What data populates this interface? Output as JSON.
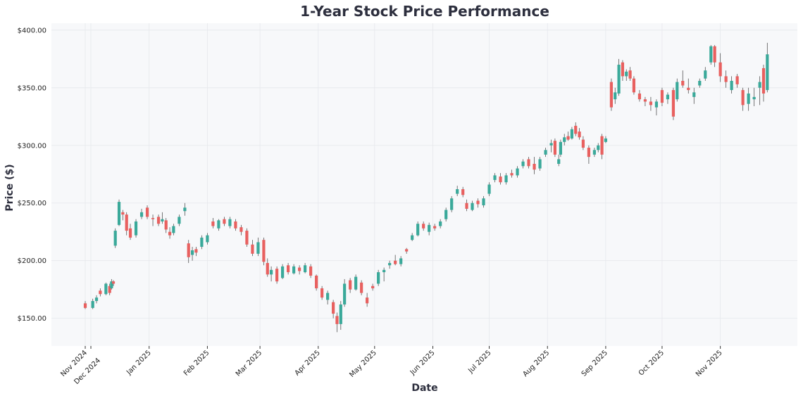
{
  "chart_data": {
    "type": "candlestick",
    "title": "1-Year Stock Price Performance",
    "xlabel": "Date",
    "ylabel": "Price ($)",
    "xlim": [
      "2024-11-10",
      "2025-12-12"
    ],
    "ylim": [
      126,
      406
    ],
    "grid": true,
    "colors": {
      "up": "#3aa99a",
      "down": "#e8605f",
      "wick": "#555555",
      "background": "#f7f8fa",
      "grid": "#e6e8ec"
    },
    "y_ticks": [
      {
        "value": 150,
        "label": "$150.00"
      },
      {
        "value": 200,
        "label": "$200.00"
      },
      {
        "value": 250,
        "label": "$250.00"
      },
      {
        "value": 300,
        "label": "$300.00"
      },
      {
        "value": 350,
        "label": "$350.00"
      },
      {
        "value": 400,
        "label": "$400.00"
      }
    ],
    "x_ticks": [
      {
        "date": "2024-11-28",
        "label": "Nov 2024"
      },
      {
        "date": "2024-12-01",
        "label": "Dec 2024"
      },
      {
        "date": "2025-01-01",
        "label": "Jan 2025"
      },
      {
        "date": "2025-02-01",
        "label": "Feb 2025"
      },
      {
        "date": "2025-03-01",
        "label": "Mar 2025"
      },
      {
        "date": "2025-04-01",
        "label": "Apr 2025"
      },
      {
        "date": "2025-05-01",
        "label": "May 2025"
      },
      {
        "date": "2025-06-01",
        "label": "Jun 2025"
      },
      {
        "date": "2025-07-01",
        "label": "Jul 2025"
      },
      {
        "date": "2025-08-01",
        "label": "Aug 2025"
      },
      {
        "date": "2025-09-01",
        "label": "Sep 2025"
      },
      {
        "date": "2025-10-01",
        "label": "Oct 2025"
      },
      {
        "date": "2025-11-01",
        "label": "Nov 2025"
      }
    ],
    "columns": [
      "date",
      "open",
      "high",
      "low",
      "close"
    ],
    "candles": [
      [
        "2024-11-28",
        163,
        165,
        158,
        159
      ],
      [
        "2024-12-02",
        159,
        167,
        158,
        165
      ],
      [
        "2024-12-04",
        165,
        170,
        163,
        168
      ],
      [
        "2024-12-06",
        174,
        176,
        169,
        171
      ],
      [
        "2024-12-09",
        171,
        181,
        170,
        180
      ],
      [
        "2024-12-11",
        178,
        180,
        170,
        172
      ],
      [
        "2024-12-12",
        176,
        184,
        175,
        182
      ],
      [
        "2024-12-13",
        182,
        183,
        178,
        180
      ],
      [
        "2024-12-14",
        213,
        228,
        211,
        226
      ],
      [
        "2024-12-16",
        231,
        253,
        230,
        251
      ],
      [
        "2024-12-18",
        242,
        244,
        235,
        240
      ],
      [
        "2024-12-20",
        240,
        242,
        222,
        226
      ],
      [
        "2024-12-22",
        228,
        232,
        218,
        220
      ],
      [
        "2024-12-25",
        222,
        236,
        220,
        234
      ],
      [
        "2024-12-28",
        238,
        245,
        236,
        242
      ],
      [
        "2024-12-31",
        246,
        248,
        236,
        238
      ],
      [
        "2025-01-03",
        237,
        240,
        230,
        236
      ],
      [
        "2025-01-06",
        238,
        240,
        230,
        232
      ],
      [
        "2025-01-08",
        234,
        242,
        232,
        236
      ],
      [
        "2025-01-10",
        235,
        237,
        224,
        227
      ],
      [
        "2025-01-12",
        225,
        229,
        219,
        222
      ],
      [
        "2025-01-14",
        224,
        232,
        222,
        230
      ],
      [
        "2025-01-17",
        232,
        240,
        230,
        238
      ],
      [
        "2025-01-20",
        243,
        250,
        239,
        246
      ],
      [
        "2025-01-22",
        215,
        218,
        198,
        203
      ],
      [
        "2025-01-24",
        205,
        212,
        200,
        209
      ],
      [
        "2025-01-26",
        210,
        212,
        204,
        207
      ],
      [
        "2025-01-29",
        212,
        222,
        210,
        220
      ],
      [
        "2025-02-01",
        216,
        224,
        214,
        222
      ],
      [
        "2025-02-04",
        234,
        237,
        228,
        230
      ],
      [
        "2025-02-07",
        228,
        236,
        226,
        235
      ],
      [
        "2025-02-10",
        236,
        238,
        230,
        232
      ],
      [
        "2025-02-13",
        230,
        238,
        228,
        236
      ],
      [
        "2025-02-16",
        234,
        236,
        226,
        228
      ],
      [
        "2025-02-19",
        229,
        231,
        222,
        225
      ],
      [
        "2025-02-22",
        226,
        228,
        212,
        214
      ],
      [
        "2025-02-25",
        214,
        218,
        204,
        206
      ],
      [
        "2025-02-28",
        206,
        220,
        204,
        216
      ],
      [
        "2025-03-03",
        218,
        220,
        196,
        199
      ],
      [
        "2025-03-05",
        198,
        202,
        186,
        188
      ],
      [
        "2025-03-07",
        188,
        195,
        182,
        192
      ],
      [
        "2025-03-10",
        193,
        195,
        180,
        182
      ],
      [
        "2025-03-13",
        185,
        197,
        184,
        195
      ],
      [
        "2025-03-16",
        196,
        198,
        188,
        190
      ],
      [
        "2025-03-19",
        189,
        197,
        188,
        195
      ],
      [
        "2025-03-22",
        194,
        196,
        188,
        191
      ],
      [
        "2025-03-25",
        190,
        198,
        189,
        196
      ],
      [
        "2025-03-28",
        195,
        197,
        185,
        187
      ],
      [
        "2025-03-31",
        187,
        188,
        174,
        176
      ],
      [
        "2025-04-03",
        176,
        178,
        166,
        168
      ],
      [
        "2025-04-06",
        166,
        174,
        162,
        172
      ],
      [
        "2025-04-09",
        164,
        166,
        150,
        154
      ],
      [
        "2025-04-11",
        152,
        155,
        138,
        145
      ],
      [
        "2025-04-13",
        145,
        165,
        140,
        162
      ],
      [
        "2025-04-15",
        162,
        184,
        160,
        180
      ],
      [
        "2025-04-18",
        183,
        185,
        172,
        175
      ],
      [
        "2025-04-21",
        175,
        188,
        174,
        186
      ],
      [
        "2025-04-24",
        181,
        183,
        170,
        172
      ],
      [
        "2025-04-27",
        168,
        172,
        160,
        163
      ],
      [
        "2025-04-30",
        178,
        180,
        174,
        176
      ],
      [
        "2025-05-03",
        180,
        192,
        178,
        190
      ],
      [
        "2025-05-06",
        190,
        194,
        182,
        192
      ],
      [
        "2025-05-09",
        196,
        200,
        193,
        198
      ],
      [
        "2025-05-12",
        200,
        205,
        196,
        197
      ],
      [
        "2025-05-15",
        197,
        204,
        195,
        202
      ],
      [
        "2025-05-18",
        210,
        211,
        206,
        208
      ],
      [
        "2025-05-21",
        218,
        224,
        217,
        222
      ],
      [
        "2025-05-24",
        222,
        234,
        221,
        232
      ],
      [
        "2025-05-27",
        232,
        234,
        226,
        228
      ],
      [
        "2025-05-30",
        225,
        233,
        222,
        231
      ],
      [
        "2025-06-02",
        230,
        232,
        226,
        228
      ],
      [
        "2025-06-05",
        230,
        236,
        228,
        234
      ],
      [
        "2025-06-08",
        236,
        246,
        234,
        244
      ],
      [
        "2025-06-11",
        244,
        256,
        242,
        254
      ],
      [
        "2025-06-14",
        258,
        265,
        256,
        262
      ],
      [
        "2025-06-17",
        262,
        264,
        255,
        257
      ],
      [
        "2025-06-19",
        250,
        253,
        243,
        245
      ],
      [
        "2025-06-22",
        244,
        252,
        243,
        250
      ],
      [
        "2025-06-25",
        252,
        254,
        246,
        249
      ],
      [
        "2025-06-28",
        248,
        256,
        246,
        254
      ],
      [
        "2025-07-01",
        258,
        268,
        256,
        266
      ],
      [
        "2025-07-04",
        270,
        276,
        268,
        274
      ],
      [
        "2025-07-07",
        273,
        276,
        266,
        268
      ],
      [
        "2025-07-10",
        268,
        276,
        266,
        274
      ],
      [
        "2025-07-13",
        276,
        279,
        272,
        274
      ],
      [
        "2025-07-16",
        274,
        282,
        272,
        280
      ],
      [
        "2025-07-19",
        282,
        288,
        280,
        286
      ],
      [
        "2025-07-22",
        288,
        290,
        280,
        282
      ],
      [
        "2025-07-25",
        284,
        290,
        275,
        279
      ],
      [
        "2025-07-28",
        280,
        290,
        278,
        288
      ],
      [
        "2025-07-31",
        292,
        298,
        290,
        296
      ],
      [
        "2025-08-03",
        300,
        305,
        294,
        302
      ],
      [
        "2025-08-05",
        304,
        306,
        290,
        292
      ],
      [
        "2025-08-07",
        284,
        292,
        282,
        288
      ],
      [
        "2025-08-08",
        292,
        305,
        290,
        303
      ],
      [
        "2025-08-10",
        303,
        310,
        300,
        307
      ],
      [
        "2025-08-12",
        308,
        312,
        304,
        305
      ],
      [
        "2025-08-14",
        306,
        316,
        305,
        314
      ],
      [
        "2025-08-16",
        317,
        320,
        308,
        310
      ],
      [
        "2025-08-18",
        312,
        315,
        305,
        307
      ],
      [
        "2025-08-20",
        305,
        308,
        296,
        298
      ],
      [
        "2025-08-23",
        298,
        300,
        284,
        290
      ],
      [
        "2025-08-26",
        292,
        298,
        290,
        296
      ],
      [
        "2025-08-28",
        296,
        302,
        294,
        300
      ],
      [
        "2025-08-30",
        308,
        310,
        288,
        292
      ],
      [
        "2025-09-01",
        303,
        308,
        302,
        306
      ],
      [
        "2025-09-04",
        355,
        358,
        330,
        333
      ],
      [
        "2025-09-06",
        340,
        350,
        336,
        346
      ],
      [
        "2025-09-08",
        345,
        375,
        343,
        370
      ],
      [
        "2025-09-10",
        372,
        374,
        356,
        360
      ],
      [
        "2025-09-12",
        360,
        366,
        356,
        364
      ],
      [
        "2025-09-14",
        365,
        368,
        356,
        358
      ],
      [
        "2025-09-16",
        358,
        360,
        344,
        346
      ],
      [
        "2025-09-19",
        345,
        348,
        338,
        340
      ],
      [
        "2025-09-22",
        340,
        342,
        334,
        338
      ],
      [
        "2025-09-25",
        338,
        342,
        330,
        335
      ],
      [
        "2025-09-28",
        333,
        340,
        326,
        338
      ],
      [
        "2025-10-01",
        348,
        350,
        334,
        337
      ],
      [
        "2025-10-04",
        340,
        346,
        336,
        344
      ],
      [
        "2025-10-07",
        348,
        350,
        322,
        325
      ],
      [
        "2025-10-09",
        340,
        358,
        338,
        355
      ],
      [
        "2025-10-12",
        356,
        365,
        350,
        352
      ],
      [
        "2025-10-15",
        350,
        358,
        345,
        348
      ],
      [
        "2025-10-18",
        342,
        350,
        336,
        346
      ],
      [
        "2025-10-21",
        352,
        358,
        350,
        356
      ],
      [
        "2025-10-24",
        358,
        368,
        356,
        365
      ],
      [
        "2025-10-27",
        372,
        387,
        370,
        386
      ],
      [
        "2025-10-29",
        386,
        387,
        368,
        372
      ],
      [
        "2025-11-01",
        372,
        380,
        355,
        360
      ],
      [
        "2025-11-04",
        360,
        365,
        350,
        355
      ],
      [
        "2025-11-07",
        348,
        360,
        345,
        356
      ],
      [
        "2025-11-10",
        360,
        362,
        350,
        353
      ],
      [
        "2025-11-13",
        348,
        350,
        330,
        335
      ],
      [
        "2025-11-16",
        336,
        350,
        330,
        345
      ],
      [
        "2025-11-19",
        340,
        350,
        334,
        342
      ],
      [
        "2025-11-22",
        350,
        360,
        335,
        355
      ],
      [
        "2025-11-24",
        367,
        370,
        338,
        345
      ],
      [
        "2025-11-26",
        348,
        389,
        346,
        379
      ]
    ]
  }
}
